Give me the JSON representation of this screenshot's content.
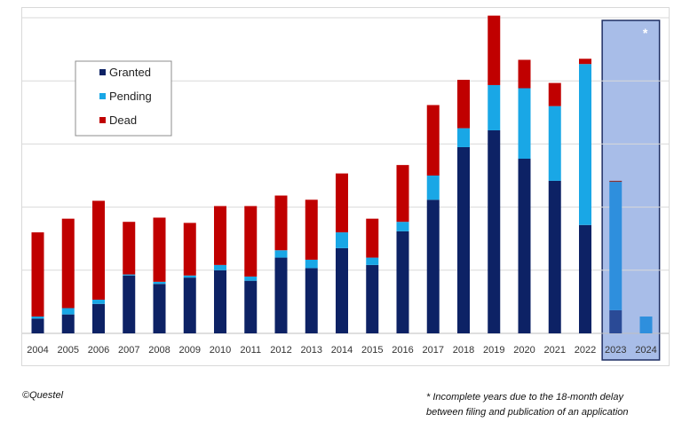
{
  "chart_data": {
    "type": "bar",
    "stacked": true,
    "categories": [
      "2004",
      "2005",
      "2006",
      "2007",
      "2008",
      "2009",
      "2010",
      "2011",
      "2012",
      "2013",
      "2014",
      "2015",
      "2016",
      "2017",
      "2018",
      "2019",
      "2020",
      "2021",
      "2022",
      "2023",
      "2024"
    ],
    "series": [
      {
        "name": "Granted",
        "color": "#0d2265",
        "values": [
          14,
          18,
          28,
          55,
          47,
          53,
          60,
          50,
          72,
          62,
          81,
          65,
          97,
          127,
          177,
          193,
          166,
          145,
          103,
          22,
          0
        ]
      },
      {
        "name": "Pending",
        "color": "#19a7e6",
        "values": [
          2,
          6,
          4,
          1,
          2,
          2,
          5,
          4,
          7,
          8,
          15,
          7,
          9,
          23,
          18,
          43,
          67,
          71,
          153,
          122,
          16
        ]
      },
      {
        "name": "Dead",
        "color": "#c00000",
        "values": [
          80,
          85,
          94,
          50,
          61,
          50,
          56,
          67,
          52,
          57,
          56,
          37,
          54,
          67,
          46,
          66,
          27,
          22,
          5,
          1,
          0
        ]
      }
    ],
    "ylim": [
      0,
      300
    ],
    "yticks": [
      0,
      60,
      120,
      180,
      240,
      300
    ],
    "grid": true,
    "legend_position": "top-left",
    "highlight_categories": [
      "2023",
      "2024"
    ],
    "highlight_colors": {
      "fill": "#a8bde8",
      "border": "#1f2f63",
      "granted": "#2a4a96",
      "pending": "#2e8fdd",
      "dead": "#8a3030",
      "tick": "#1e3f8f"
    },
    "highlight_marker": "*",
    "grid_color": "#d9d9d9"
  },
  "footer": {
    "copyright": "©Questel",
    "note_line1": "* Incomplete years due to the 18-month delay",
    "note_line2": "between filing and publication of an application"
  }
}
